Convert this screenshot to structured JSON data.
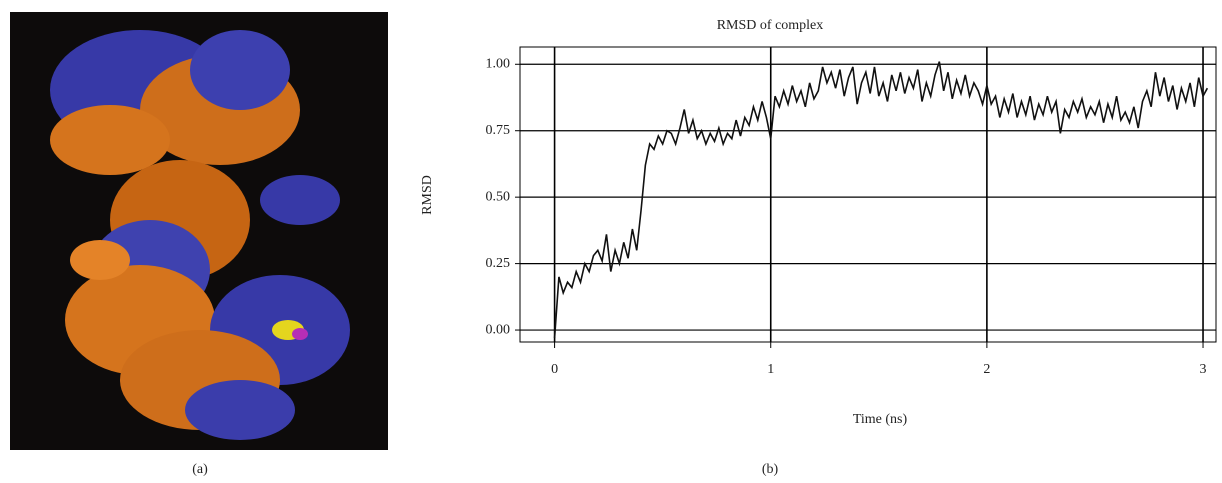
{
  "panels": [
    "(a)",
    "(b)"
  ],
  "chart_data": {
    "type": "line",
    "title": "RMSD of complex",
    "xlabel": "Time (ns)",
    "ylabel": "RMSD",
    "xlim": [
      -0.16,
      3.06
    ],
    "ylim": [
      -0.045,
      1.065
    ],
    "xticks": [
      0,
      1,
      2,
      3
    ],
    "yticks": [
      {
        "value": 0,
        "label": "0.00"
      },
      0.25,
      {
        "value": 0.5,
        "label": "0.50"
      },
      0.75,
      {
        "value": 1,
        "label": "1.00"
      }
    ],
    "grid": true,
    "series": [
      {
        "name": "RMSD",
        "color": "#111111",
        "x": [
          0,
          0.02,
          0.04,
          0.06,
          0.08,
          0.1,
          0.12,
          0.14,
          0.16,
          0.18,
          0.2,
          0.22,
          0.24,
          0.26,
          0.28,
          0.3,
          0.32,
          0.34,
          0.36,
          0.38,
          0.4,
          0.42,
          0.44,
          0.46,
          0.48,
          0.5,
          0.52,
          0.54,
          0.56,
          0.58,
          0.6,
          0.62,
          0.64,
          0.66,
          0.68,
          0.7,
          0.72,
          0.74,
          0.76,
          0.78,
          0.8,
          0.82,
          0.84,
          0.86,
          0.88,
          0.9,
          0.92,
          0.94,
          0.96,
          0.98,
          1,
          1.02,
          1.04,
          1.06,
          1.08,
          1.1,
          1.12,
          1.14,
          1.16,
          1.18,
          1.2,
          1.22,
          1.24,
          1.26,
          1.28,
          1.3,
          1.32,
          1.34,
          1.36,
          1.38,
          1.4,
          1.42,
          1.44,
          1.46,
          1.48,
          1.5,
          1.52,
          1.54,
          1.56,
          1.58,
          1.6,
          1.62,
          1.64,
          1.66,
          1.68,
          1.7,
          1.72,
          1.74,
          1.76,
          1.78,
          1.8,
          1.82,
          1.84,
          1.86,
          1.88,
          1.9,
          1.92,
          1.94,
          1.96,
          1.98,
          2,
          2.02,
          2.04,
          2.06,
          2.08,
          2.1,
          2.12,
          2.14,
          2.16,
          2.18,
          2.2,
          2.22,
          2.24,
          2.26,
          2.28,
          2.3,
          2.32,
          2.34,
          2.36,
          2.38,
          2.4,
          2.42,
          2.44,
          2.46,
          2.48,
          2.5,
          2.52,
          2.54,
          2.56,
          2.58,
          2.6,
          2.62,
          2.64,
          2.66,
          2.68,
          2.7,
          2.72,
          2.74,
          2.76,
          2.78,
          2.8,
          2.82,
          2.84,
          2.86,
          2.88,
          2.9,
          2.92,
          2.94,
          2.96,
          2.98,
          3,
          3.02
        ],
        "values": [
          -0.03,
          0.2,
          0.14,
          0.18,
          0.16,
          0.22,
          0.18,
          0.25,
          0.22,
          0.28,
          0.3,
          0.26,
          0.36,
          0.22,
          0.3,
          0.25,
          0.33,
          0.27,
          0.38,
          0.3,
          0.45,
          0.62,
          0.7,
          0.68,
          0.73,
          0.7,
          0.75,
          0.74,
          0.7,
          0.76,
          0.83,
          0.74,
          0.79,
          0.72,
          0.75,
          0.7,
          0.74,
          0.71,
          0.76,
          0.7,
          0.74,
          0.72,
          0.79,
          0.73,
          0.8,
          0.77,
          0.84,
          0.79,
          0.86,
          0.8,
          0.72,
          0.88,
          0.84,
          0.9,
          0.85,
          0.92,
          0.86,
          0.9,
          0.84,
          0.93,
          0.87,
          0.9,
          0.99,
          0.93,
          0.97,
          0.91,
          0.98,
          0.88,
          0.95,
          0.99,
          0.85,
          0.93,
          0.97,
          0.89,
          0.99,
          0.88,
          0.93,
          0.86,
          0.96,
          0.9,
          0.97,
          0.89,
          0.95,
          0.91,
          0.98,
          0.86,
          0.93,
          0.88,
          0.96,
          1.01,
          0.9,
          0.97,
          0.87,
          0.94,
          0.89,
          0.96,
          0.88,
          0.93,
          0.9,
          0.85,
          0.92,
          0.85,
          0.88,
          0.8,
          0.87,
          0.82,
          0.89,
          0.8,
          0.86,
          0.81,
          0.88,
          0.79,
          0.85,
          0.81,
          0.88,
          0.82,
          0.86,
          0.74,
          0.83,
          0.8,
          0.86,
          0.82,
          0.87,
          0.8,
          0.84,
          0.81,
          0.86,
          0.78,
          0.85,
          0.8,
          0.88,
          0.79,
          0.82,
          0.78,
          0.84,
          0.76,
          0.86,
          0.9,
          0.84,
          0.97,
          0.88,
          0.95,
          0.86,
          0.92,
          0.83,
          0.91,
          0.86,
          0.93,
          0.84,
          0.95,
          0.88,
          0.91
        ]
      }
    ]
  }
}
